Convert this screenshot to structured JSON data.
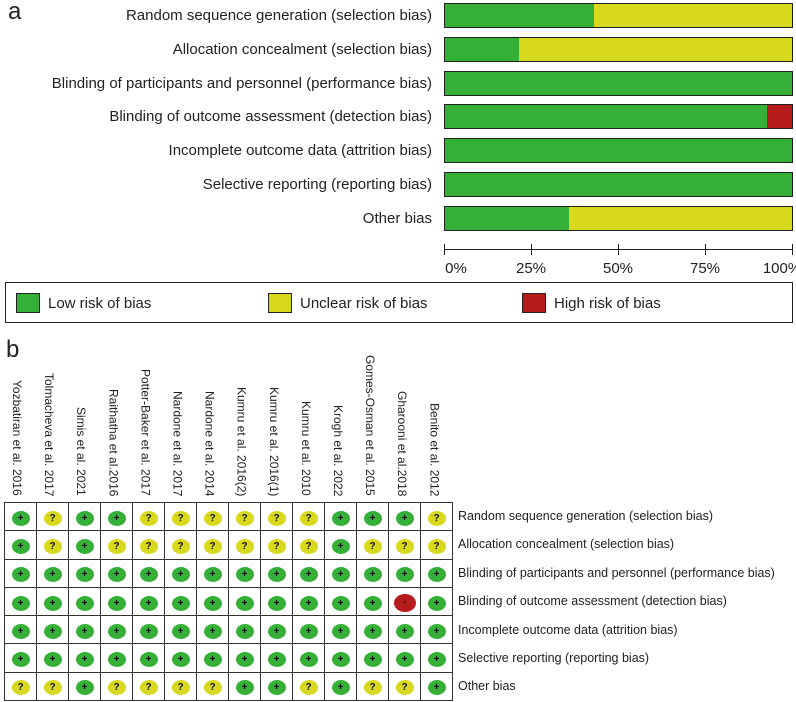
{
  "panels": {
    "a": "a",
    "b": "b"
  },
  "colors": {
    "low": "#35b037",
    "unclear": "#d8d81c",
    "high": "#b71c1c"
  },
  "chart_data": [
    {
      "type": "bar",
      "subtype": "stacked-horizontal-percent",
      "categories": [
        "Random sequence generation (selection bias)",
        "Allocation concealment (selection bias)",
        "Blinding of participants and personnel (performance bias)",
        "Blinding of outcome assessment (detection bias)",
        "Incomplete outcome data (attrition bias)",
        "Selective reporting (reporting bias)",
        "Other bias"
      ],
      "series": [
        {
          "name": "Low risk of bias",
          "values": [
            42.9,
            21.4,
            100,
            92.9,
            100,
            100,
            35.7
          ]
        },
        {
          "name": "Unclear risk of bias",
          "values": [
            57.1,
            78.6,
            0,
            0,
            0,
            0,
            64.3
          ]
        },
        {
          "name": "High risk of bias",
          "values": [
            0,
            0,
            0,
            7.1,
            0,
            0,
            0
          ]
        }
      ],
      "xticks": [
        "0%",
        "25%",
        "50%",
        "75%",
        "100%"
      ],
      "xlim": [
        0,
        100
      ],
      "legend": "bottom"
    },
    {
      "type": "table",
      "studies": [
        "Yozbatiran et al. 2016",
        "Tolmacheva et al. 2017",
        "Simis et al. 2021",
        "Raithatha et al.2016",
        "Potter-Baker et al. 2017",
        "Nardone et al. 2017",
        "Nardone et al. 2014",
        "Kumru et al. 2016(2)",
        "Kumru et al. 2016(1)",
        "Kumru et al. 2010",
        "Krogh et al. 2022",
        "Gomes-Osman et al. 2015",
        "Gharooni et al.2018",
        "Benito et al. 2012"
      ],
      "domains": [
        "Random sequence generation (selection bias)",
        "Allocation concealment (selection bias)",
        "Blinding of participants and personnel (performance bias)",
        "Blinding of outcome assessment (detection bias)",
        "Incomplete outcome data (attrition bias)",
        "Selective reporting (reporting bias)",
        "Other bias"
      ],
      "judgements": [
        [
          "+",
          "?",
          "+",
          "+",
          "?",
          "?",
          "?",
          "?",
          "?",
          "?",
          "+",
          "+",
          "+",
          "?"
        ],
        [
          "+",
          "?",
          "+",
          "?",
          "?",
          "?",
          "?",
          "?",
          "?",
          "?",
          "+",
          "?",
          "?",
          "?"
        ],
        [
          "+",
          "+",
          "+",
          "+",
          "+",
          "+",
          "+",
          "+",
          "+",
          "+",
          "+",
          "+",
          "+",
          "+"
        ],
        [
          "+",
          "+",
          "+",
          "+",
          "+",
          "+",
          "+",
          "+",
          "+",
          "+",
          "+",
          "+",
          "-",
          "+"
        ],
        [
          "+",
          "+",
          "+",
          "+",
          "+",
          "+",
          "+",
          "+",
          "+",
          "+",
          "+",
          "+",
          "+",
          "+"
        ],
        [
          "+",
          "+",
          "+",
          "+",
          "+",
          "+",
          "+",
          "+",
          "+",
          "+",
          "+",
          "+",
          "+",
          "+"
        ],
        [
          "?",
          "?",
          "+",
          "?",
          "?",
          "?",
          "?",
          "+",
          "+",
          "?",
          "+",
          "?",
          "?",
          "+"
        ]
      ]
    }
  ]
}
